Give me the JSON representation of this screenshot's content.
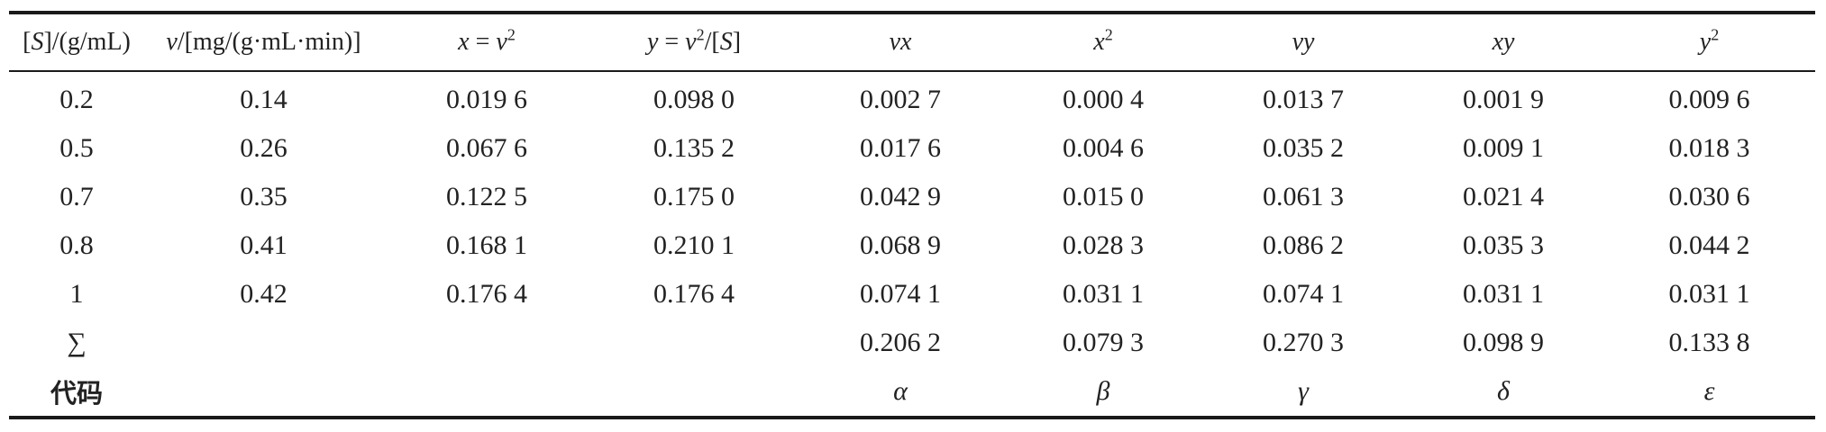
{
  "table": {
    "headers": {
      "c1_pre": "[",
      "c1_var": "S",
      "c1_post": "]/(g/mL)",
      "c2_var": "v",
      "c2_post": "/[mg/(g·mL·min)]",
      "c3_lhs": "x",
      "c3_eq": " = ",
      "c3_var": "v",
      "c3_exp": "2",
      "c4_lhs": "y",
      "c4_eq": " = ",
      "c4_var": "v",
      "c4_exp": "2",
      "c4_div": "/[",
      "c4_s": "S",
      "c4_close": "]",
      "c5": "vx",
      "c6_var": "x",
      "c6_exp": "2",
      "c7": "vy",
      "c8": "xy",
      "c9_var": "y",
      "c9_exp": "2"
    },
    "rows": [
      [
        "0.2",
        "0.14",
        "0.019 6",
        "0.098 0",
        "0.002 7",
        "0.000 4",
        "0.013 7",
        "0.001 9",
        "0.009 6"
      ],
      [
        "0.5",
        "0.26",
        "0.067 6",
        "0.135 2",
        "0.017 6",
        "0.004 6",
        "0.035 2",
        "0.009 1",
        "0.018 3"
      ],
      [
        "0.7",
        "0.35",
        "0.122 5",
        "0.175 0",
        "0.042 9",
        "0.015 0",
        "0.061 3",
        "0.021 4",
        "0.030 6"
      ],
      [
        "0.8",
        "0.41",
        "0.168 1",
        "0.210 1",
        "0.068 9",
        "0.028 3",
        "0.086 2",
        "0.035 3",
        "0.044 2"
      ],
      [
        "1",
        "0.42",
        "0.176 4",
        "0.176 4",
        "0.074 1",
        "0.031 1",
        "0.074 1",
        "0.031 1",
        "0.031 1"
      ]
    ],
    "sum_row": {
      "label": "∑",
      "values": [
        "0.206 2",
        "0.079 3",
        "0.270 3",
        "0.098 9",
        "0.133 8"
      ]
    },
    "code_row": {
      "label": "代码",
      "symbols": [
        "α",
        "β",
        "γ",
        "δ",
        "ε"
      ]
    }
  }
}
